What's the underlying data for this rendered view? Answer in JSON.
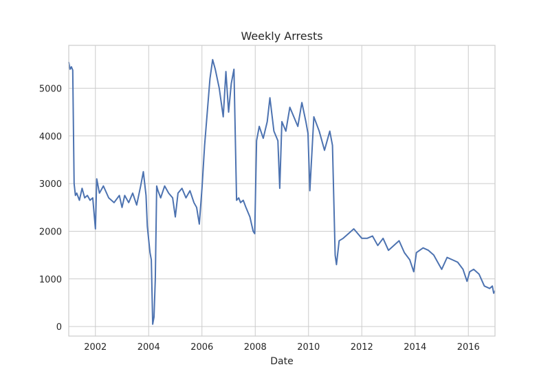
{
  "chart_data": {
    "type": "line",
    "title": "Weekly Arrests",
    "xlabel": "Date",
    "ylabel": "",
    "xlim": [
      2001.0,
      2017.0
    ],
    "ylim": [
      -200,
      5900
    ],
    "grid": true,
    "x_ticks": [
      2002,
      2004,
      2006,
      2008,
      2010,
      2012,
      2014,
      2016
    ],
    "y_ticks": [
      0,
      1000,
      2000,
      3000,
      4000,
      5000
    ],
    "series": [
      {
        "color": "#4c72b0",
        "x": [
          2001.0,
          2001.05,
          2001.1,
          2001.15,
          2001.2,
          2001.25,
          2001.3,
          2001.4,
          2001.5,
          2001.6,
          2001.7,
          2001.8,
          2001.9,
          2002.0,
          2002.05,
          2002.15,
          2002.3,
          2002.5,
          2002.7,
          2002.9,
          2003.0,
          2003.1,
          2003.25,
          2003.4,
          2003.55,
          2003.7,
          2003.8,
          2003.9,
          2003.95,
          2004.05,
          2004.1,
          2004.15,
          2004.2,
          2004.25,
          2004.3,
          2004.35,
          2004.45,
          2004.6,
          2004.75,
          2004.9,
          2005.0,
          2005.1,
          2005.25,
          2005.4,
          2005.55,
          2005.7,
          2005.8,
          2005.9,
          2006.0,
          2006.1,
          2006.2,
          2006.3,
          2006.4,
          2006.5,
          2006.65,
          2006.8,
          2006.9,
          2007.0,
          2007.1,
          2007.2,
          2007.3,
          2007.38,
          2007.45,
          2007.55,
          2007.65,
          2007.8,
          2007.92,
          2007.98,
          2008.05,
          2008.15,
          2008.3,
          2008.45,
          2008.55,
          2008.7,
          2008.85,
          2008.92,
          2009.0,
          2009.15,
          2009.3,
          2009.45,
          2009.6,
          2009.75,
          2009.9,
          2009.98,
          2010.05,
          2010.2,
          2010.4,
          2010.6,
          2010.8,
          2010.9,
          2011.0,
          2011.05,
          2011.15,
          2011.3,
          2011.5,
          2011.7,
          2011.85,
          2012.0,
          2012.2,
          2012.4,
          2012.6,
          2012.8,
          2013.0,
          2013.2,
          2013.4,
          2013.6,
          2013.8,
          2013.95,
          2014.05,
          2014.3,
          2014.5,
          2014.7,
          2014.9,
          2015.0,
          2015.2,
          2015.4,
          2015.6,
          2015.8,
          2015.95,
          2016.05,
          2016.2,
          2016.4,
          2016.6,
          2016.8,
          2016.9,
          2016.95,
          2017.0
        ],
        "y": [
          5550,
          5400,
          5450,
          5380,
          3000,
          2750,
          2800,
          2650,
          2900,
          2700,
          2750,
          2650,
          2700,
          2050,
          3100,
          2800,
          2950,
          2700,
          2600,
          2750,
          2500,
          2750,
          2600,
          2800,
          2550,
          2950,
          3250,
          2750,
          2100,
          1550,
          1400,
          50,
          200,
          1000,
          2950,
          2850,
          2700,
          2950,
          2800,
          2700,
          2300,
          2800,
          2900,
          2700,
          2850,
          2600,
          2500,
          2150,
          2900,
          3800,
          4500,
          5200,
          5600,
          5400,
          5000,
          4400,
          5350,
          4500,
          5100,
          5400,
          2650,
          2700,
          2600,
          2650,
          2500,
          2300,
          2000,
          1950,
          3900,
          4200,
          3950,
          4300,
          4800,
          4100,
          3900,
          2900,
          4300,
          4100,
          4600,
          4400,
          4200,
          4700,
          4300,
          4050,
          2850,
          4400,
          4100,
          3700,
          4100,
          3800,
          1500,
          1300,
          1800,
          1850,
          1950,
          2050,
          1950,
          1850,
          1850,
          1900,
          1700,
          1850,
          1600,
          1700,
          1800,
          1550,
          1400,
          1150,
          1550,
          1650,
          1600,
          1500,
          1300,
          1200,
          1450,
          1400,
          1350,
          1200,
          950,
          1150,
          1200,
          1100,
          850,
          800,
          850,
          700,
          750
        ]
      }
    ]
  }
}
